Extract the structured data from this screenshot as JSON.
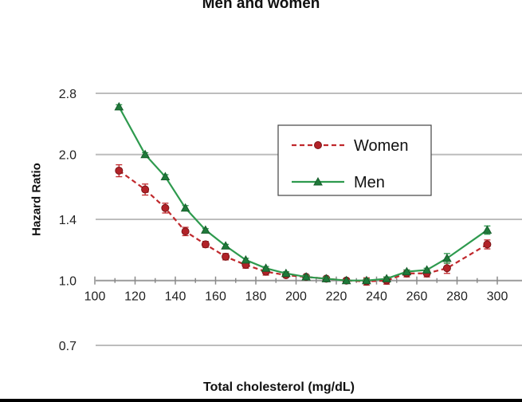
{
  "chart_data": {
    "type": "line",
    "title": "Men and women",
    "xlabel": "Total cholesterol (mg/dL)",
    "ylabel": "Hazard Ratio",
    "x_ticks": [
      "100",
      "120",
      "140",
      "160",
      "180",
      "200",
      "220",
      "240",
      "260",
      "280",
      "300"
    ],
    "y_ticks": [
      "0.7",
      "1.0",
      "1.4",
      "2.0",
      "2.8"
    ],
    "y_scale": "log",
    "xlim": [
      100,
      305
    ],
    "ylim": [
      0.7,
      2.8
    ],
    "grid": "horizontal",
    "legend_position": "top-right",
    "series": [
      {
        "name": "Women",
        "color": "#c0282c",
        "marker": "circle",
        "line_style": "dashed",
        "x": [
          112,
          125,
          135,
          145,
          155,
          165,
          175,
          185,
          195,
          205,
          215,
          225,
          235,
          245,
          255,
          265,
          275,
          295
        ],
        "y": [
          1.83,
          1.65,
          1.49,
          1.31,
          1.22,
          1.14,
          1.09,
          1.05,
          1.03,
          1.02,
          1.01,
          1.0,
          0.995,
          1.0,
          1.04,
          1.04,
          1.07,
          1.22
        ],
        "err": [
          0.06,
          0.05,
          0.04,
          0.03,
          0.02,
          0.02,
          0.02,
          0.02,
          0.01,
          0.01,
          0.01,
          0.0,
          0.02,
          0.02,
          0.02,
          0.02,
          0.03,
          0.03
        ]
      },
      {
        "name": "Men",
        "color": "#2e9a4e",
        "marker": "triangle",
        "line_style": "solid",
        "x": [
          112,
          125,
          135,
          145,
          155,
          165,
          175,
          185,
          195,
          205,
          215,
          225,
          235,
          245,
          255,
          265,
          275,
          295
        ],
        "y": [
          2.6,
          2.0,
          1.77,
          1.49,
          1.32,
          1.21,
          1.12,
          1.07,
          1.04,
          1.02,
          1.01,
          1.0,
          1.0,
          1.01,
          1.05,
          1.06,
          1.13,
          1.32
        ],
        "err": [
          0.03,
          0.02,
          0.02,
          0.02,
          0.01,
          0.01,
          0.01,
          0.01,
          0.01,
          0.01,
          0.01,
          0.0,
          0.01,
          0.01,
          0.01,
          0.01,
          0.03,
          0.03
        ]
      }
    ]
  }
}
